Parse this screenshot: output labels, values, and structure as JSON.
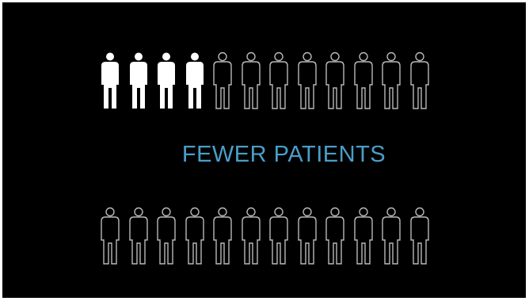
{
  "caption": "FEWER PATIENTS",
  "colors": {
    "background": "#000000",
    "highlight": "#ffffff",
    "outline": "#b8b8b8",
    "accent": "#4a9ec8"
  },
  "icon": "person-icon",
  "rows": [
    {
      "total": 12,
      "highlighted": 4
    },
    {
      "total": 12,
      "highlighted": 0
    }
  ]
}
